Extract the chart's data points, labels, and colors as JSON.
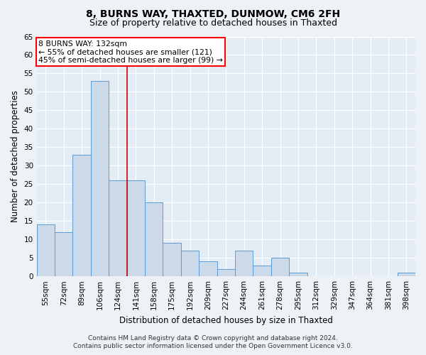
{
  "title1": "8, BURNS WAY, THAXTED, DUNMOW, CM6 2FH",
  "title2": "Size of property relative to detached houses in Thaxted",
  "xlabel": "Distribution of detached houses by size in Thaxted",
  "ylabel": "Number of detached properties",
  "bar_labels": [
    "55sqm",
    "72sqm",
    "89sqm",
    "106sqm",
    "124sqm",
    "141sqm",
    "158sqm",
    "175sqm",
    "192sqm",
    "209sqm",
    "227sqm",
    "244sqm",
    "261sqm",
    "278sqm",
    "295sqm",
    "312sqm",
    "329sqm",
    "347sqm",
    "364sqm",
    "381sqm",
    "398sqm"
  ],
  "bar_values": [
    14,
    12,
    33,
    53,
    26,
    26,
    20,
    9,
    7,
    4,
    2,
    7,
    3,
    5,
    1,
    0,
    0,
    0,
    0,
    0,
    1
  ],
  "bar_color": "#ccd9e8",
  "bar_edge_color": "#5b9bd5",
  "ylim": [
    0,
    65
  ],
  "yticks": [
    0,
    5,
    10,
    15,
    20,
    25,
    30,
    35,
    40,
    45,
    50,
    55,
    60,
    65
  ],
  "red_line_x": 4.5,
  "annotation_title": "8 BURNS WAY: 132sqm",
  "annotation_line1": "← 55% of detached houses are smaller (121)",
  "annotation_line2": "45% of semi-detached houses are larger (99) →",
  "footer1": "Contains HM Land Registry data © Crown copyright and database right 2024.",
  "footer2": "Contains public sector information licensed under the Open Government Licence v3.0.",
  "bg_color": "#eef2f7",
  "plot_bg_color": "#e4ecf5",
  "grid_color": "#ffffff",
  "title1_fontsize": 10,
  "title2_fontsize": 9,
  "xlabel_fontsize": 8.5,
  "ylabel_fontsize": 8.5,
  "annotation_fontsize": 7.8,
  "tick_fontsize": 7.5,
  "footer_fontsize": 6.5
}
